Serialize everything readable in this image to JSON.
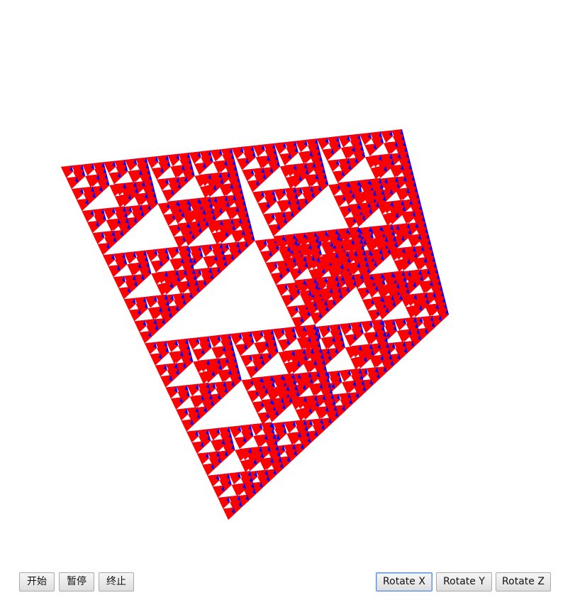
{
  "controls": {
    "start_label": "开始",
    "pause_label": "暂停",
    "stop_label": "终止",
    "rotate_x_label": "Rotate X",
    "rotate_y_label": "Rotate Y",
    "rotate_z_label": "Rotate Z"
  },
  "scene": {
    "fill_color": "#ff0000",
    "edge_color": "#0000ff",
    "background_color": "#ffffff"
  }
}
